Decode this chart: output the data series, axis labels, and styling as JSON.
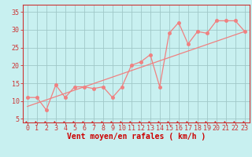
{
  "bg_color": "#c8f0f0",
  "grid_color": "#a0c8c8",
  "line_color": "#f08080",
  "spine_color": "#cc3333",
  "tick_color": "#cc3333",
  "xlabel": "Vent moyen/en rafales ( km/h )",
  "xlabel_color": "#cc0000",
  "ylabel_ticks": [
    5,
    10,
    15,
    20,
    25,
    30,
    35
  ],
  "xlim": [
    -0.5,
    23.5
  ],
  "ylim": [
    4,
    37
  ],
  "xticks": [
    0,
    1,
    2,
    3,
    4,
    5,
    6,
    7,
    8,
    9,
    10,
    11,
    12,
    13,
    14,
    15,
    16,
    17,
    18,
    19,
    20,
    21,
    22,
    23
  ],
  "scatter_x": [
    0,
    1,
    2,
    3,
    4,
    5,
    6,
    7,
    8,
    9,
    10,
    11,
    12,
    13,
    14,
    15,
    16,
    17,
    18,
    19,
    20,
    21,
    22,
    23
  ],
  "scatter_y": [
    11,
    11,
    7.5,
    14.5,
    11,
    14,
    14,
    13.5,
    14,
    11,
    14,
    20,
    21,
    23,
    14,
    29,
    32,
    26,
    29.5,
    29,
    32.5,
    32.5,
    32.5,
    29.5
  ],
  "line1_x": [
    0,
    23
  ],
  "line1_y": [
    8.5,
    29.5
  ],
  "font_size_xlabel": 7,
  "tick_font_size": 6,
  "marker_size": 2.5
}
